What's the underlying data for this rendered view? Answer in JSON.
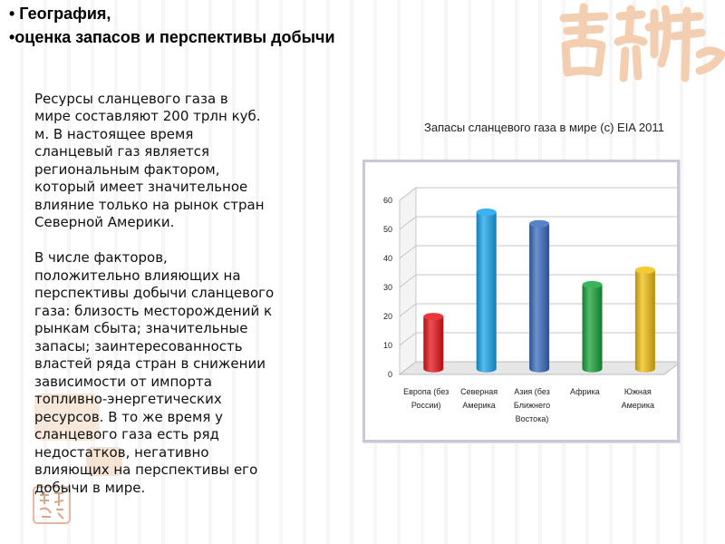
{
  "heading": {
    "line1": "• География,",
    "line2": "•оценка запасов и перспективы добычи"
  },
  "body": {
    "paragraph1": "  Ресурсы сланцевого газа в\nмире составляют 200  трлн куб.\nм.  В  настоящее время\nсланцевый газ является\nрегиональным фактором,\nкоторый имеет значительное\nвлияние только на рынок стран\nСеверной Америки.",
    "paragraph2": " В числе факторов,\nположительно влияющих на\nперспективы добычи сланцевого\nгаза: близость месторождений к\nрынкам сбыта; значительные\nзапасы; заинтересованность\nвластей ряда стран в снижении\nзависимости от импорта\nтопливно-энергетических\nресурсов. В то же время у\nсланцевого газа есть ряд\nнедостатков, негативно\nвлияющих на перспективы его\nдобычи в мире."
  },
  "decor": {
    "seal_top_icon": "chinese-seal-decoration-icon",
    "seal_top_color": "#f3c9a8",
    "seal_left_color": "#f0d6c0"
  },
  "chart_data": {
    "type": "bar",
    "title": "Запасы сланцевого газа в мире (с) EIA 2011",
    "categories": [
      [
        "Европа (без",
        "России)"
      ],
      [
        "Северная",
        "Америка"
      ],
      [
        "Азия (без",
        "Ближнего",
        "Востока)"
      ],
      [
        "Африка"
      ],
      [
        "Южная",
        "Америка"
      ]
    ],
    "values": [
      18,
      54,
      50,
      29,
      34
    ],
    "colors": [
      "#e8141a",
      "#1aa6ec",
      "#3a6cc0",
      "#18a53a",
      "#f2c010"
    ],
    "ylim": [
      0,
      60
    ],
    "yticks": [
      "0",
      "10",
      "20",
      "30",
      "40",
      "50",
      "60"
    ],
    "grid": true,
    "style": "3d-cylinder"
  }
}
